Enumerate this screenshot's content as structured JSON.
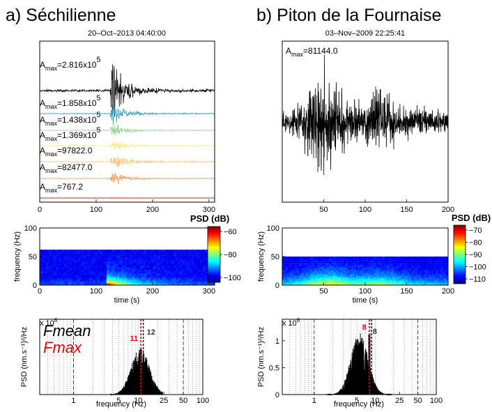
{
  "titles": {
    "a": "a) Séchilienne",
    "b": "b) Piton de la Fournaise"
  },
  "timestamps": {
    "a": "20–Oct–2013 04:40:00",
    "b": "03–Nov–2009 22:25:41"
  },
  "colorbar": {
    "label": "PSD (dB)",
    "a_ticks": [
      "−60",
      "−80",
      "−100"
    ],
    "b_ticks": [
      "−70",
      "−80",
      "−90",
      "−100",
      "−110"
    ]
  },
  "legend": {
    "fmean": "Fmean",
    "fmax": "Fmax",
    "fmean_color": "#000000",
    "fmax_color": "#e00000"
  },
  "chart_data": [
    {
      "id": "seismograms-a",
      "type": "line",
      "title": "20–Oct–2013 04:40:00",
      "xlabel": "",
      "x_ticks": [
        "0",
        "100",
        "200",
        "300"
      ],
      "xlim": [
        0,
        310
      ],
      "onset_s": 125,
      "series": [
        {
          "label": "A",
          "sub": "max",
          "value": "=2.816x10",
          "exp": "5",
          "color": "#000000",
          "amp": 1.0
        },
        {
          "label": "A",
          "sub": "max",
          "value": "=1.858x10",
          "exp": "5",
          "color": "#3a9fbd",
          "amp": 0.66
        },
        {
          "label": "A",
          "sub": "max",
          "value": "=1.438x10",
          "exp": "5",
          "color": "#9fd29a",
          "amp": 0.51
        },
        {
          "label": "A",
          "sub": "max",
          "value": "=1.369x10",
          "exp": "5",
          "color": "#f2ec88",
          "amp": 0.49
        },
        {
          "label": "A",
          "sub": "max",
          "value": "=97822.0",
          "exp": "",
          "color": "#f9c77a",
          "amp": 0.35
        },
        {
          "label": "A",
          "sub": "max",
          "value": "=82477.0",
          "exp": "",
          "color": "#f1a060",
          "amp": 0.29
        },
        {
          "label": "A",
          "sub": "max",
          "value": "=767.2",
          "exp": "",
          "color": "#d9533a",
          "amp": 0.01
        }
      ]
    },
    {
      "id": "seismogram-b",
      "type": "line",
      "title": "03–Nov–2009 22:25:41",
      "x_ticks": [
        "50",
        "100",
        "150",
        "200"
      ],
      "xlim": [
        0,
        200
      ],
      "amax": {
        "label": "A",
        "sub": "max",
        "value": "=81144.0"
      },
      "color": "#000000"
    },
    {
      "id": "spectrogram-a",
      "type": "heatmap",
      "xlabel": "time (s)",
      "ylabel": "frequency (Hz)",
      "x_ticks": [
        "0",
        "100",
        "200",
        "300"
      ],
      "y_ticks": [
        "0",
        "50",
        "100"
      ],
      "xlim": [
        0,
        310
      ],
      "ylim": [
        0,
        100
      ],
      "fmax_hz": 62,
      "clim_db": [
        -105,
        -55
      ]
    },
    {
      "id": "spectrogram-b",
      "type": "heatmap",
      "xlabel": "time (s)",
      "ylabel": "frequency (Hz)",
      "x_ticks": [
        "50",
        "100",
        "150",
        "200"
      ],
      "y_ticks": [
        "0",
        "50",
        "100"
      ],
      "xlim": [
        0,
        200
      ],
      "ylim": [
        0,
        100
      ],
      "fmax_hz": 50,
      "clim_db": [
        -115,
        -65
      ]
    },
    {
      "id": "spectrum-a",
      "type": "bar",
      "xscale": "log",
      "xlabel": "frequency (Hz)",
      "ylabel": "PSD (nm.s⁻¹)²/Hz",
      "y_exponent": "x 10",
      "y_exponent_power": "8",
      "x_ticks": [
        "1",
        "5",
        "10",
        "25",
        "50",
        "100"
      ],
      "xlim": [
        0.3,
        100
      ],
      "fmax_hz": 11,
      "fmean_hz": 12,
      "fmax_label": "11",
      "fmean_label": "12",
      "band_hz": [
        5,
        15
      ]
    },
    {
      "id": "spectrum-b",
      "type": "bar",
      "xscale": "log",
      "xlabel": "frequency (Hz)",
      "ylabel": "PSD (nm.s⁻¹)²/Hz",
      "y_exponent": "x 10",
      "y_exponent_power": "8",
      "x_ticks": [
        "1",
        "5",
        "10",
        "25",
        "50",
        "100"
      ],
      "y_ticks": [
        "0",
        "0.5",
        "1"
      ],
      "xlim": [
        0.3,
        100
      ],
      "ylim": [
        0,
        1.4
      ],
      "fmax_hz": 8,
      "fmean_hz": 8,
      "fmax_label": "8",
      "fmean_label": "8",
      "band_hz": [
        1.5,
        13
      ]
    }
  ]
}
